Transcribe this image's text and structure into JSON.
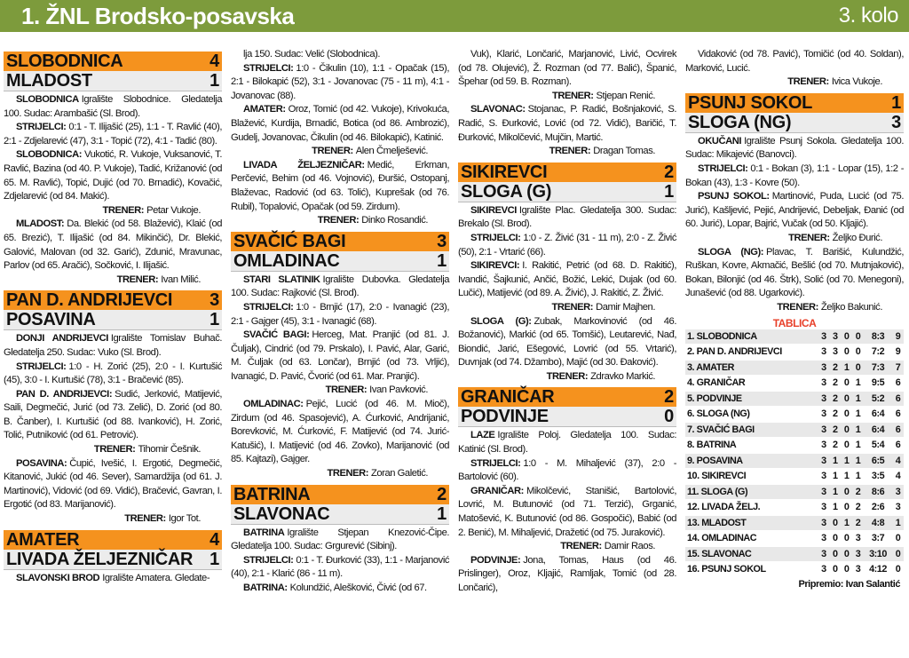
{
  "header": {
    "title": "1. ŽNL Brodsko-posavska",
    "round": "3. kolo"
  },
  "columns": [
    {
      "items": [
        {
          "home": "SLOBODNICA",
          "home_score": 4,
          "away": "MLADOST",
          "away_score": 1
        },
        {
          "lead": "SLOBODNICA",
          "text": "Igralište Slobodnice. Gledatelja 100. Sudac: Arambašić (Sl. Brod)."
        },
        {
          "lead": "STRIJELCI:",
          "text": "0:1 - T. Ilijašić (25), 1:1 - T. Ravlić (40), 2:1 - Zdjelarević (47), 3:1 - Topić (72), 4:1 - Tadić (80)."
        },
        {
          "lead": "SLOBODNICA:",
          "text": "Vukotić, R. Vukoje, Vuksanović, T. Ravlić, Bazina (od 40. P. Vukoje), Tadić, Križanović (od 65. M. Ravlić), Topić, Dujić (od 70. Brnadić), Kovačić, Zdjelarević (od 84. Makić)."
        },
        {
          "label": "TRENER:",
          "coach": "Petar Vukoje."
        },
        {
          "lead": "MLADOST:",
          "text": "Da. Blekić (od 58. Blažević), Klaić (od 65. Brezić), T. Ilijašić (od 84. Mikinčić), Dr. Blekić, Galović, Malovan (od 32. Garić), Zdunić, Mravunac, Parlov (od 65. Aračić), Sočković, I. Ilijašić."
        },
        {
          "label": "TRENER:",
          "coach": "Ivan Milić."
        },
        {
          "home": "PAN D. ANDRIJEVCI",
          "home_score": 3,
          "away": "POSAVINA",
          "away_score": 1
        },
        {
          "lead": "DONJI ANDRIJEVCI",
          "text": "Igralište Tomislav Buhač. Gledatelja 250. Sudac: Vuko (Sl. Brod)."
        },
        {
          "lead": "STRIJELCI:",
          "text": "1:0 - H. Zorić (25), 2:0 - I. Kurtušić (45), 3:0 - I. Kurtušić (78), 3:1 - Bračević (85)."
        },
        {
          "lead": "PAN D. ANDRIJEVCI:",
          "text": "Sudić, Jerković, Matijević, Saili, Degmečić, Jurić (od 73. Zelić), D. Zorić (od 80. B. Čanber), I. Kurtušić (od 88. Ivanković), H. Zorić, Tolić, Putniković (od 61. Petrović)."
        },
        {
          "label": "TRENER:",
          "coach": "Tihomir Češnik."
        },
        {
          "lead": "POSAVINA:",
          "text": "Čupić, Ivešić, I. Ergotić, Degmečić, Kitanović, Jukić (od 46. Sever), Samardžija (od 61. J. Martinović), Vidović (od 69. Vidić), Bračević, Gavran, I. Ergotić (od 83. Marijanović)."
        },
        {
          "label": "TRENER:",
          "coach": "Igor Tot."
        },
        {
          "home": "AMATER",
          "home_score": 4,
          "away": "LIVADA ŽELJEZNIČAR",
          "away_score": 1
        },
        {
          "lead": "SLAVONSKI BROD",
          "text": "Igralište Amatera. Gledate-"
        }
      ]
    },
    {
      "items": [
        {
          "text": "lja 150. Sudac: Velić (Slobodnica)."
        },
        {
          "lead": "STRIJELCI:",
          "text": "1:0 - Čikulin (10), 1:1 - Opačak (15), 2:1 - Bilokapić (52), 3:1 - Jovanovac (75 - 11 m), 4:1 - Jovanovac (88)."
        },
        {
          "lead": "AMATER:",
          "text": "Oroz, Tomić (od 42. Vukoje), Krivokuća, Blažević, Kurdija, Brnadić, Botica (od 86. Ambrozić), Gudelj, Jovanovac, Čikulin (od 46. Bilokapić), Katinić."
        },
        {
          "label": "TRENER:",
          "coach": "Alen Čmelješević."
        },
        {
          "lead": "LIVADA ŽELJEZNIČAR:",
          "text": "Medić, Erkman, Perčević, Behim (od 46. Vojnović), Đuršić, Ostopanj, Blaževac, Radović (od 63. Tolić), Kuprešak (od 76. Rubil), Topalović, Opačak (od 59. Zirdum)."
        },
        {
          "label": "TRENER:",
          "coach": "Dinko Rosandić."
        },
        {
          "home": "SVAČIĆ BAGI",
          "home_score": 3,
          "away": "OMLADINAC",
          "away_score": 1
        },
        {
          "lead": "STARI SLATINIK",
          "text": "Igralište Dubovka. Gledatelja 100. Sudac: Rajković (Sl. Brod)."
        },
        {
          "lead": "STRIJELCI:",
          "text": "1:0 - Brnjić (17), 2:0 - Ivanagić (23), 2:1 - Gajger (45), 3:1 - Ivanagić (68)."
        },
        {
          "lead": "SVAČIĆ BAGI:",
          "text": "Herceg, Mat. Pranjić (od 81. J. Čuljak), Cindrić (od 79. Prskalo), I. Pavić, Alar, Garić, M. Čuljak (od 63. Lončar), Brnjić (od 73. Vrljić), Ivanagić, D. Pavić, Čvorić (od 61. Mar. Pranjić)."
        },
        {
          "label": "TRENER:",
          "coach": "Ivan Pavković."
        },
        {
          "lead": "OMLADINAC:",
          "text": "Pejić, Lucić (od 46. M. Mioč), Zirdum (od 46. Spasojević), A. Ćurković, Andrijanić, Borevković, M. Ćurković, F. Matijević (od 74. Jurić-Katušić), I. Matijević (od 46. Zovko), Marijanović (od 85. Kajtazi), Gajger."
        },
        {
          "label": "TRENER:",
          "coach": "Zoran Galetić."
        },
        {
          "home": "BATRINA",
          "home_score": 2,
          "away": "SLAVONAC",
          "away_score": 1
        },
        {
          "lead": "BATRINA",
          "text": "Igralište Stjepan Knezović-Čipe. Gledatelja 100. Sudac: Grgurević (Sibinj)."
        },
        {
          "lead": "STRIJELCI:",
          "text": "0:1 - T. Đurković (33), 1:1 - Marjanović (40), 2:1 - Klarić (86 - 11 m)."
        },
        {
          "lead": "BATRINA:",
          "text": "Kolundžić, Alešković, Čivić (od 67."
        }
      ]
    },
    {
      "items": [
        {
          "text": "Vuk), Klarić, Lončarić, Marjanović, Livić, Ocvirek (od 78. Olujević), Ž. Rozman (od 77. Balić), Španić, Špehar (od 59. B. Rozman)."
        },
        {
          "label": "TRENER:",
          "coach": "Stjepan Renić."
        },
        {
          "lead": "SLAVONAC:",
          "text": "Stojanac, P. Radić, Bošnjaković, S. Radić, S. Đurković, Lović (od 72. Vidić), Baričić, T. Đurković, Mikolčević, Mujčin, Martić."
        },
        {
          "label": "TRENER:",
          "coach": "Dragan Tomas."
        },
        {
          "home": "SIKIREVCI",
          "home_score": 2,
          "away": "SLOGA (G)",
          "away_score": 1
        },
        {
          "lead": "SIKIREVCI",
          "text": "Igralište Plac. Gledatelja 300. Sudac: Brekalo (Sl. Brod)."
        },
        {
          "lead": "STRIJELCI:",
          "text": "1:0 - Z. Živić (31 - 11 m), 2:0 - Z. Živić (50), 2:1 - Vrtarić (66)."
        },
        {
          "lead": "SIKIREVCI:",
          "text": "I. Rakitić, Petrić (od 68. D. Rakitić), Ivandić, Šajkunić, Ančić, Božić, Lekić, Dujak (od 60. Lučić), Matijević (od 89. A. Živić), J. Rakitić, Z. Živić."
        },
        {
          "label": "TRENER:",
          "coach": "Damir Majhen."
        },
        {
          "lead": "SLOGA (G):",
          "text": "Zubak, Markovinović (od 46. Božanović), Markić (od 65. Tomšić), Leutarević, Nađ, Biondić, Jarić, Ešegović, Lovrić (od 55. Vrtarić), Duvnjak (od 74. Džambo), Majić (od 30. Đaković)."
        },
        {
          "label": "TRENER:",
          "coach": "Zdravko Markić."
        },
        {
          "home": "GRANIČAR",
          "home_score": 2,
          "away": "PODVINJE",
          "away_score": 0
        },
        {
          "lead": "LAZE",
          "text": "Igralište Poloj. Gledatelja 100. Sudac: Katinić (Sl. Brod)."
        },
        {
          "lead": "STRIJELCI:",
          "text": "1:0 - M. Mihaljević (37), 2:0 - Bartolović (60)."
        },
        {
          "lead": "GRANIČAR:",
          "text": "Mikolčević, Stanišić, Bartolović, Lovrić, M. Butunović (od 71. Terzić), Grganić, Matošević, K. Butunović (od 86. Gospočić), Babić (od 2. Benić), M. Mihaljević, Dražetić (od 75. Juraković)."
        },
        {
          "label": "TRENER:",
          "coach": "Damir Raos."
        },
        {
          "lead": "PODVINJE:",
          "text": "Jona, Tomas, Haus (od 46. Prislinger), Oroz, Kljajić, Ramljak, Tomić (od 28. Lončarić),"
        }
      ]
    },
    {
      "items": [
        {
          "text": "Vidaković (od 78. Pavić), Tomičić (od 40. Soldan), Marković, Lucić."
        },
        {
          "label": "TRENER:",
          "coach": "Ivica Vukoje."
        },
        {
          "home": "PSUNJ SOKOL",
          "home_score": 1,
          "away": "SLOGA (NG)",
          "away_score": 3
        },
        {
          "lead": "OKUČANI",
          "text": "Igralište Psunj Sokola. Gledatelja 100. Sudac: Mikajević (Banovci)."
        },
        {
          "lead": "STRIJELCI:",
          "text": "0:1 - Bokan (3), 1:1 - Lopar (15), 1:2 - Bokan (43), 1:3 - Kovre (50)."
        },
        {
          "lead": "PSUNJ SOKOL:",
          "text": "Martinović, Puda, Lucić (od 75. Jurić), Kašljević, Pejić, Andrijević, Debeljak, Đanić (od 60. Jurić), Lopar, Bajrić, Vučak (od 50. Kljajić)."
        },
        {
          "label": "TRENER:",
          "coach": "Željko Đurić."
        },
        {
          "lead": "SLOGA (NG):",
          "text": "Plavac, T. Barišić, Kulundžić, Ruškan, Kovre, Akmačić, Bešlić (od 70. Mutnjaković), Bokan, Bilonjić (od 46. Štrk), Solić (od 70. Menegoni), Junašević (od 88. Ugarković)."
        },
        {
          "label": "TRENER:",
          "coach": "Željko Bakunić."
        }
      ]
    }
  ],
  "table": {
    "title": "TABLICA",
    "rows": [
      [
        "1. SLOBODNICA",
        3,
        3,
        0,
        0,
        "8:3",
        9
      ],
      [
        "2. PAN D. ANDRIJEVCI",
        3,
        3,
        0,
        0,
        "7:2",
        9
      ],
      [
        "3. AMATER",
        3,
        2,
        1,
        0,
        "7:3",
        7
      ],
      [
        "4. GRANIČAR",
        3,
        2,
        0,
        1,
        "9:5",
        6
      ],
      [
        "5. PODVINJE",
        3,
        2,
        0,
        1,
        "5:2",
        6
      ],
      [
        "6. SLOGA (NG)",
        3,
        2,
        0,
        1,
        "6:4",
        6
      ],
      [
        "7. SVAČIĆ BAGI",
        3,
        2,
        0,
        1,
        "6:4",
        6
      ],
      [
        "8. BATRINA",
        3,
        2,
        0,
        1,
        "5:4",
        6
      ],
      [
        "9. POSAVINA",
        3,
        1,
        1,
        1,
        "6:5",
        4
      ],
      [
        "10. SIKIREVCI",
        3,
        1,
        1,
        1,
        "3:5",
        4
      ],
      [
        "11. SLOGA (G)",
        3,
        1,
        0,
        2,
        "8:6",
        3
      ],
      [
        "12. LIVADA ŽELJ.",
        3,
        1,
        0,
        2,
        "2:6",
        3
      ],
      [
        "13. MLADOST",
        3,
        0,
        1,
        2,
        "4:8",
        1
      ],
      [
        "14. OMLADINAC",
        3,
        0,
        0,
        3,
        "3:7",
        0
      ],
      [
        "15. SLAVONAC",
        3,
        0,
        0,
        3,
        "3:10",
        0
      ],
      [
        "16. PSUNJ SOKOL",
        3,
        0,
        0,
        3,
        "4:12",
        0
      ]
    ]
  },
  "footer": "Pripremio: Ivan Salantić"
}
